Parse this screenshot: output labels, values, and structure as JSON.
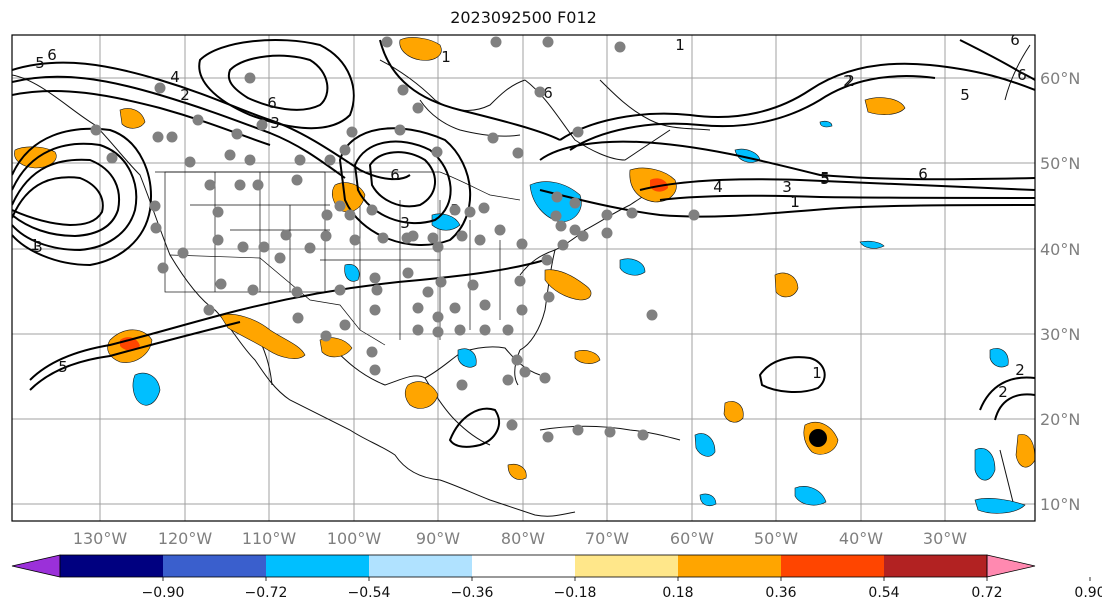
{
  "title": "2023092500 F012",
  "map": {
    "lon_labels": [
      "130°W",
      "120°W",
      "110°W",
      "100°W",
      "90°W",
      "80°W",
      "70°W",
      "60°W",
      "50°W",
      "40°W",
      "30°W"
    ],
    "lat_labels": [
      "60°N",
      "50°N",
      "40°N",
      "30°N",
      "20°N",
      "10°N"
    ],
    "contour_labels": [
      "6",
      "5",
      "4",
      "2",
      "6",
      "3",
      "6",
      "3",
      "1",
      "3",
      "6",
      "5",
      "4",
      "2",
      "3",
      "2",
      "1",
      "3",
      "5",
      "1",
      "6",
      "5",
      "6",
      "6",
      "5",
      "1",
      "2",
      "2",
      "1",
      "1"
    ],
    "colors": {
      "station_marker": "#808080",
      "storm_marker": "#000000",
      "contour_line": "#000000",
      "grid": "#a0a0a0"
    }
  },
  "colorbar": {
    "tick_labels": [
      "−0.90",
      "−0.72",
      "−0.54",
      "−0.36",
      "−0.18",
      "0.18",
      "0.36",
      "0.54",
      "0.72",
      "0.90"
    ],
    "colors": [
      "#9b30d9",
      "#000080",
      "#3a5fcd",
      "#00bfff",
      "#b0e2ff",
      "#ffffff",
      "#ffe78a",
      "#ffa500",
      "#ff4500",
      "#b22222",
      "#ff89b0"
    ]
  }
}
